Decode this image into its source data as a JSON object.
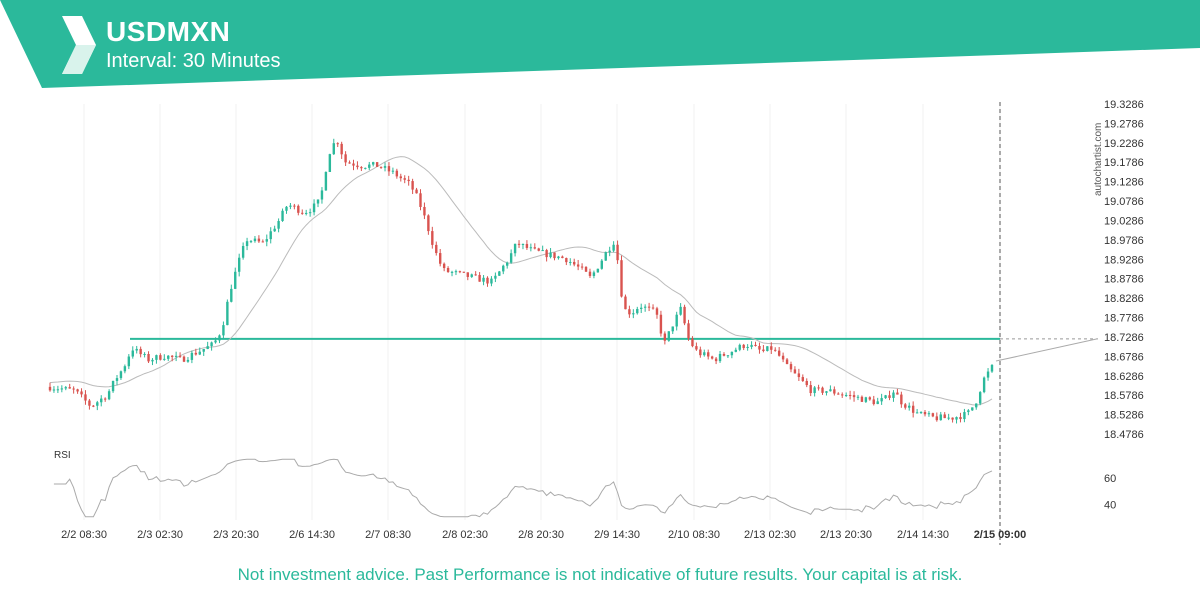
{
  "header": {
    "symbol": "USDMXN",
    "interval": "Interval: 30 Minutes",
    "brand_color": "#2bb99b"
  },
  "watermark": "autochartist.com",
  "disclaimer": "Not investment advice. Past Performance is not indicative of future results. Your capital is at risk.",
  "chart_data": {
    "type": "candlestick",
    "price_axis": {
      "ticks": [
        "19.3286",
        "19.2786",
        "19.2286",
        "19.1786",
        "19.1286",
        "19.0786",
        "19.0286",
        "18.9786",
        "18.9286",
        "18.8786",
        "18.8286",
        "18.7786",
        "18.7286",
        "18.6786",
        "18.6286",
        "18.5786",
        "18.5286",
        "18.4786"
      ],
      "range": [
        18.46,
        19.34
      ]
    },
    "time_axis": {
      "ticks": [
        "2/2 08:30",
        "2/3 02:30",
        "2/3 20:30",
        "2/6 14:30",
        "2/7 08:30",
        "2/8 02:30",
        "2/8 20:30",
        "2/9 14:30",
        "2/10 08:30",
        "2/13 02:30",
        "2/13 20:30",
        "2/14 14:30",
        "2/15 09:00"
      ],
      "current": "2/15 09:00"
    },
    "resistance_level": 18.7236,
    "price_path": [
      [
        0,
        18.6
      ],
      [
        3,
        18.59
      ],
      [
        5,
        18.55
      ],
      [
        7,
        18.58
      ],
      [
        8,
        18.62
      ],
      [
        9,
        18.65
      ],
      [
        10,
        18.7
      ],
      [
        12,
        18.67
      ],
      [
        14,
        18.68
      ],
      [
        16,
        18.67
      ],
      [
        18,
        18.69
      ],
      [
        20,
        18.71
      ],
      [
        21,
        18.75
      ],
      [
        22,
        18.85
      ],
      [
        23,
        18.92
      ],
      [
        24,
        18.98
      ],
      [
        26,
        18.97
      ],
      [
        28,
        19.03
      ],
      [
        29,
        19.07
      ],
      [
        31,
        19.05
      ],
      [
        32,
        19.06
      ],
      [
        33,
        19.08
      ],
      [
        34,
        19.2
      ],
      [
        35,
        19.24
      ],
      [
        36,
        19.18
      ],
      [
        38,
        19.17
      ],
      [
        40,
        19.17
      ],
      [
        42,
        19.15
      ],
      [
        44,
        19.12
      ],
      [
        45,
        19.08
      ],
      [
        46,
        19.02
      ],
      [
        47,
        18.95
      ],
      [
        48,
        18.9
      ],
      [
        50,
        18.89
      ],
      [
        52,
        18.88
      ],
      [
        54,
        18.87
      ],
      [
        56,
        18.93
      ],
      [
        57,
        18.97
      ],
      [
        59,
        18.95
      ],
      [
        61,
        18.94
      ],
      [
        63,
        18.93
      ],
      [
        65,
        18.9
      ],
      [
        66,
        18.88
      ],
      [
        68,
        18.95
      ],
      [
        69,
        18.98
      ],
      [
        70,
        18.8
      ],
      [
        71,
        18.79
      ],
      [
        72,
        18.81
      ],
      [
        74,
        18.79
      ],
      [
        75,
        18.71
      ],
      [
        76,
        18.76
      ],
      [
        77,
        18.8
      ],
      [
        78,
        18.72
      ],
      [
        79,
        18.69
      ],
      [
        81,
        18.67
      ],
      [
        83,
        18.69
      ],
      [
        85,
        18.71
      ],
      [
        87,
        18.69
      ],
      [
        88,
        18.7
      ],
      [
        89,
        18.68
      ],
      [
        90,
        18.65
      ],
      [
        91,
        18.63
      ],
      [
        93,
        18.59
      ],
      [
        95,
        18.59
      ],
      [
        97,
        18.58
      ],
      [
        99,
        18.57
      ],
      [
        101,
        18.56
      ],
      [
        102,
        18.57
      ],
      [
        103,
        18.59
      ],
      [
        104,
        18.56
      ],
      [
        106,
        18.53
      ],
      [
        108,
        18.52
      ],
      [
        110,
        18.52
      ],
      [
        112,
        18.53
      ],
      [
        113,
        18.56
      ],
      [
        114,
        18.62
      ],
      [
        115,
        18.65
      ]
    ],
    "price_path_domain": [
      0,
      115
    ],
    "rsi": {
      "label": "RSI",
      "ticks": [
        "60",
        "40"
      ],
      "range": [
        30,
        75
      ]
    }
  }
}
